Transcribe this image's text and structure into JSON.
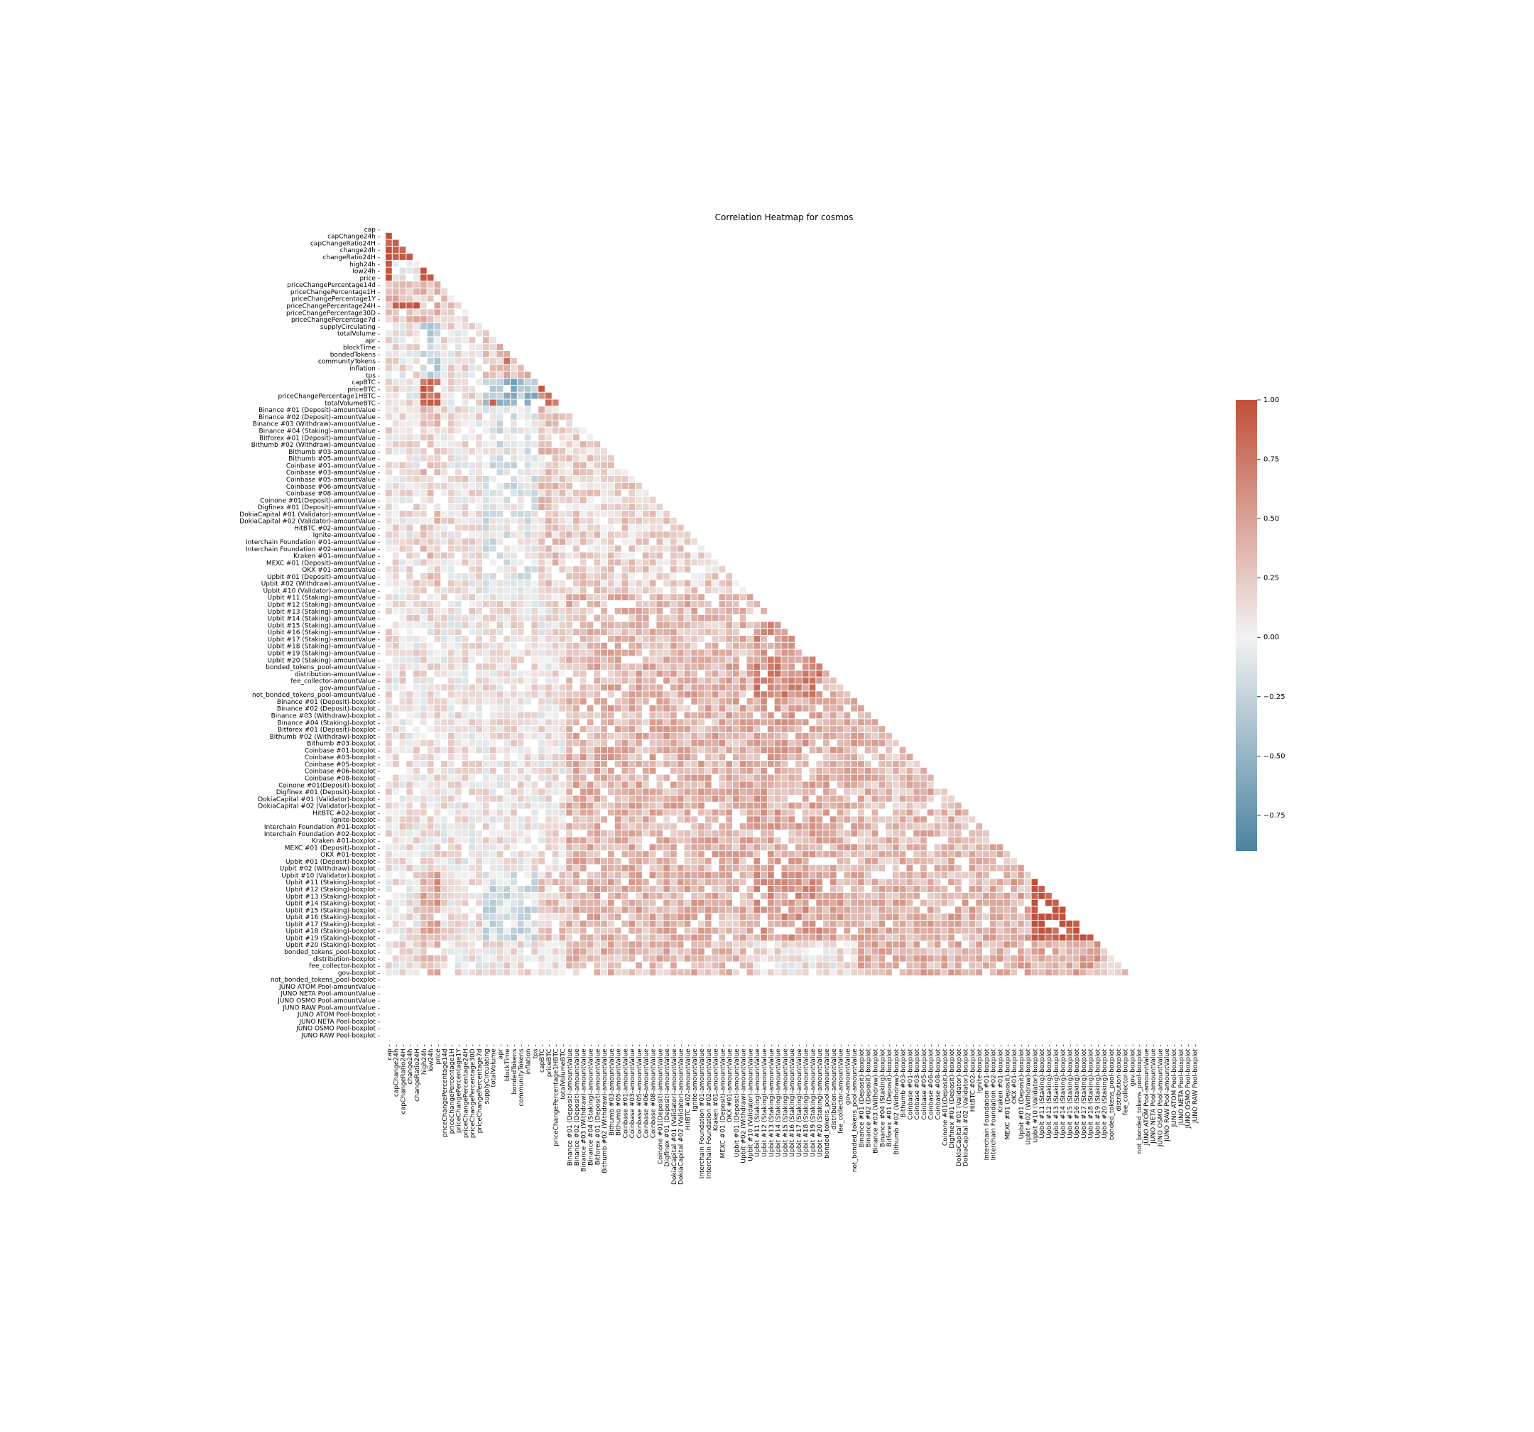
{
  "chart_data": {
    "type": "heatmap",
    "title": "Correlation Heatmap for cosmos",
    "mask": "upper-triangle",
    "labels": [
      "cap",
      "capChange24h",
      "capChangeRatio24H",
      "change24h",
      "changeRatio24H",
      "high24h",
      "low24h",
      "price",
      "priceChangePercentage14d",
      "priceChangePercentage1H",
      "priceChangePercentage1Y",
      "priceChangePercentage24H",
      "priceChangePercentage30D",
      "priceChangePercentage7d",
      "supplyCirculating",
      "totalVolume",
      "apr",
      "blockTime",
      "bondedTokens",
      "communityTokens",
      "inflation",
      "tps",
      "capBTC",
      "priceBTC",
      "priceChangePercentage1HBTC",
      "totalVolumeBTC",
      "Binance #01 (Deposit)-amountValue",
      "Binance #02 (Deposit)-amountValue",
      "Binance #03 (Withdraw)-amountValue",
      "Binance #04 (Staking)-amountValue",
      "Bitforex #01 (Deposit)-amountValue",
      "Bithumb #02 (Withdraw)-amountValue",
      "Bithumb #03-amountValue",
      "Bithumb #05-amountValue",
      "Coinbase #01-amountValue",
      "Coinbase #03-amountValue",
      "Coinbase #05-amountValue",
      "Coinbase #06-amountValue",
      "Coinbase #08-amountValue",
      "Coinone #01(Deposit)-amountValue",
      "Digfinex #01 (Deposit)-amountValue",
      "DokiaCapital #01 (Validator)-amountValue",
      "DokiaCapital #02 (Validator)-amountValue",
      "HitBTC #02-amountValue",
      "Ignite-amountValue",
      "Interchain Foundation #01-amountValue",
      "Interchain Foundation #02-amountValue",
      "Kraken #01-amountValue",
      "MEXC #01 (Deposit)-amountValue",
      "OKX #01-amountValue",
      "Upbit #01 (Deposit)-amountValue",
      "Upbit #02 (Withdraw)-amountValue",
      "Upbit #10 (Validator)-amountValue",
      "Upbit #11 (Staking)-amountValue",
      "Upbit #12 (Staking)-amountValue",
      "Upbit #13 (Staking)-amountValue",
      "Upbit #14 (Staking)-amountValue",
      "Upbit #15 (Staking)-amountValue",
      "Upbit #16 (Staking)-amountValue",
      "Upbit #17 (Staking)-amountValue",
      "Upbit #18 (Staking)-amountValue",
      "Upbit #19 (Staking)-amountValue",
      "Upbit #20 (Staking)-amountValue",
      "bonded_tokens_pool-amountValue",
      "distribution-amountValue",
      "fee_collector-amountValue",
      "gov-amountValue",
      "not_bonded_tokens_pool-amountValue",
      "Binance #01 (Deposit)-boxplot",
      "Binance #02 (Deposit)-boxplot",
      "Binance #03 (Withdraw)-boxplot",
      "Binance #04 (Staking)-boxplot",
      "Bitforex #01 (Deposit)-boxplot",
      "Bithumb #02 (Withdraw)-boxplot",
      "Bithumb #03-boxplot",
      "Coinbase #01-boxplot",
      "Coinbase #03-boxplot",
      "Coinbase #05-boxplot",
      "Coinbase #06-boxplot",
      "Coinbase #08-boxplot",
      "Coinone #01(Deposit)-boxplot",
      "Digfinex #01 (Deposit)-boxplot",
      "DokiaCapital #01 (Validator)-boxplot",
      "DokiaCapital #02 (Validator)-boxplot",
      "HitBTC #02-boxplot",
      "Ignite-boxplot",
      "Interchain Foundation #01-boxplot",
      "Interchain Foundation #02-boxplot",
      "Kraken #01-boxplot",
      "MEXC #01 (Deposit)-boxplot",
      "OKX #01-boxplot",
      "Upbit #01 (Deposit)-boxplot",
      "Upbit #02 (Withdraw)-boxplot",
      "Upbit #10 (Validator)-boxplot",
      "Upbit #11 (Staking)-boxplot",
      "Upbit #12 (Staking)-boxplot",
      "Upbit #13 (Staking)-boxplot",
      "Upbit #14 (Staking)-boxplot",
      "Upbit #15 (Staking)-boxplot",
      "Upbit #16 (Staking)-boxplot",
      "Upbit #17 (Staking)-boxplot",
      "Upbit #18 (Staking)-boxplot",
      "Upbit #19 (Staking)-boxplot",
      "Upbit #20 (Staking)-boxplot",
      "bonded_tokens_pool-boxplot",
      "distribution-boxplot",
      "fee_collector-boxplot",
      "gov-boxplot",
      "not_bonded_tokens_pool-boxplot",
      "JUNO ATOM Pool-amountValue",
      "JUNO NETA Pool-amountValue",
      "JUNO OSMO Pool-amountValue",
      "JUNO RAW Pool-amountValue",
      "JUNO ATOM Pool-boxplot",
      "JUNO NETA Pool-boxplot",
      "JUNO OSMO Pool-boxplot",
      "JUNO RAW Pool-boxplot"
    ],
    "approximate_values": {
      "note": "estimated from colors; pairs not listed are rendered from group-level estimates",
      "pairs": [
        [
          "capChangeRatio24H",
          "capChange24h",
          0.9
        ],
        [
          "change24h",
          "capChange24h",
          0.9
        ],
        [
          "change24h",
          "capChangeRatio24H",
          0.85
        ],
        [
          "changeRatio24H",
          "capChange24h",
          0.9
        ],
        [
          "changeRatio24H",
          "capChangeRatio24H",
          0.95
        ],
        [
          "changeRatio24H",
          "change24h",
          0.95
        ],
        [
          "high24h",
          "cap",
          0.95
        ],
        [
          "low24h",
          "cap",
          0.95
        ],
        [
          "price",
          "cap",
          1.0
        ],
        [
          "price",
          "high24h",
          0.95
        ],
        [
          "price",
          "low24h",
          0.95
        ],
        [
          "priceChangePercentage24H",
          "capChange24h",
          0.9
        ],
        [
          "priceChangePercentage24H",
          "capChangeRatio24H",
          0.95
        ],
        [
          "priceChangePercentage24H",
          "change24h",
          0.9
        ],
        [
          "priceChangePercentage24H",
          "changeRatio24H",
          1.0
        ],
        [
          "communityTokens",
          "blockTime",
          0.8
        ],
        [
          "capBTC",
          "bondedTokens",
          -0.7
        ],
        [
          "priceBTC",
          "capBTC",
          0.95
        ],
        [
          "totalVolumeBTC",
          "totalVolume",
          0.9
        ]
      ]
    },
    "colorbar": {
      "min": -0.9,
      "max": 1.0,
      "ticks": [
        1.0,
        0.75,
        0.5,
        0.25,
        0.0,
        -0.25,
        -0.5,
        -0.75
      ],
      "tick_labels": [
        "1.00",
        "0.75",
        "0.50",
        "0.25",
        "0.00",
        "−0.25",
        "−0.50",
        "−0.75"
      ],
      "colors": {
        "negative": "#4c83a1",
        "zero": "#f2f2f2",
        "positive": "#c1503a"
      }
    }
  }
}
